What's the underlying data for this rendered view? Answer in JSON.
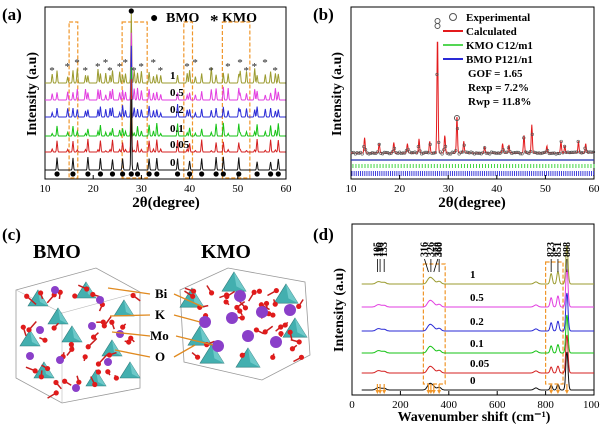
{
  "chart_data": [
    {
      "panel": "(a)",
      "type": "line",
      "legend": [
        {
          "marker": "●",
          "label": "BMO"
        },
        {
          "marker": "*",
          "label": "KMO"
        }
      ],
      "xlabel": "2θ(degree)",
      "ylabel": "Intensity (a.u)",
      "xticks": [
        10,
        20,
        30,
        40,
        50,
        60
      ],
      "xlim": [
        10,
        60
      ],
      "series": [
        {
          "name": "1",
          "color": "#9b9b2f"
        },
        {
          "name": "0.5",
          "color": "#e23ee0"
        },
        {
          "name": "0.2",
          "color": "#2a2ad6"
        },
        {
          "name": "0.1",
          "color": "#16c316"
        },
        {
          "name": "0.05",
          "color": "#d42020"
        },
        {
          "name": "0",
          "color": "#111111"
        }
      ],
      "bmo_peaks": [
        12.5,
        15.8,
        18.9,
        21.5,
        24.0,
        26.1,
        27.9,
        29.2,
        31.6,
        33.2,
        37.5,
        40.0,
        42.5,
        45.5,
        47.0,
        50.2,
        54.0,
        56.8,
        58.4
      ],
      "kmo_peaks": [
        11.5,
        14.7,
        16.7,
        18.4,
        21.0,
        22.6,
        23.5,
        25.5,
        26.7,
        28.5,
        30.0,
        32.5,
        34.0,
        39.5,
        41.2,
        44.5,
        48.0,
        50.5,
        51.8,
        53.5,
        55.7,
        57.8
      ],
      "highlight_ranges": [
        [
          15,
          16.8
        ],
        [
          26,
          31.2
        ],
        [
          38.8,
          40.6
        ],
        [
          46.8,
          52.5
        ]
      ]
    },
    {
      "panel": "(b)",
      "type": "scatter",
      "legend": [
        {
          "label": "Experimental",
          "style": "circle",
          "color": "#555555"
        },
        {
          "label": "Calculated",
          "style": "line",
          "color": "#e31a1c"
        },
        {
          "label": "KMO C12/m1",
          "style": "line",
          "color": "#54d654"
        },
        {
          "label": "BMO P121/n1",
          "style": "line",
          "color": "#2a2ad6"
        }
      ],
      "stats": [
        "GOF = 1.65",
        "Rexp = 7.2%",
        "Rwp = 11.8%"
      ],
      "xlabel": "2θ(degree)",
      "ylabel": "Intensity (a.u)",
      "xticks": [
        10,
        20,
        30,
        40,
        50,
        60
      ],
      "xlim": [
        10,
        60
      ],
      "peaks": [
        [
          12.8,
          0.13
        ],
        [
          15.8,
          0.08
        ],
        [
          18.8,
          0.09
        ],
        [
          21.6,
          0.08
        ],
        [
          24.0,
          0.12
        ],
        [
          26.2,
          0.1
        ],
        [
          27.8,
          1.0
        ],
        [
          29.3,
          0.15
        ],
        [
          31.8,
          0.32
        ],
        [
          33.2,
          0.1
        ],
        [
          37.5,
          0.05
        ],
        [
          41.2,
          0.08
        ],
        [
          42.5,
          0.07
        ],
        [
          45.6,
          0.15
        ],
        [
          47.2,
          0.24
        ],
        [
          50.3,
          0.06
        ],
        [
          53.2,
          0.1
        ],
        [
          54.0,
          0.06
        ],
        [
          56.8,
          0.1
        ],
        [
          58.3,
          0.08
        ]
      ]
    },
    {
      "panel": "(d)",
      "type": "line",
      "xlabel": "Wavenumber shift (cm⁻¹)",
      "ylabel": "Intensity (a.u)",
      "xticks": [
        0,
        200,
        400,
        600,
        800,
        1000
      ],
      "xlim": [
        0,
        1000
      ],
      "series_labels": [
        "1",
        "0.5",
        "0.2",
        "0.1",
        "0.05",
        "0"
      ],
      "series_colors": [
        "#9b9b2f",
        "#e23ee0",
        "#2a2ad6",
        "#16c316",
        "#d42020",
        "#111111"
      ],
      "peak_labels": [
        "105",
        "116",
        "133",
        "316",
        "326",
        "338",
        "360",
        "823",
        "851",
        "888"
      ],
      "bands": [
        105,
        116,
        133,
        316,
        326,
        338,
        360,
        823,
        851,
        888
      ]
    }
  ],
  "panel_c": {
    "label": "(c)",
    "left_title": "BMO",
    "right_title": "KMO",
    "atoms": [
      "Bi",
      "K",
      "Mo",
      "O"
    ]
  }
}
